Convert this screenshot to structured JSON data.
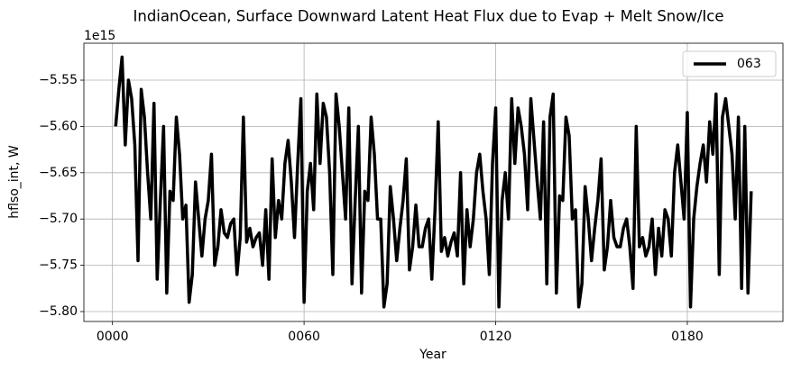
{
  "chart_data": {
    "type": "line",
    "title": "IndianOcean, Surface Downward Latent Heat Flux due to Evap + Melt Snow/Ice",
    "xlabel": "Year",
    "ylabel": "hflso_int, W",
    "offset_label": "1e15",
    "grid": true,
    "legend": "upper right",
    "xlim": [
      -8.95,
      209.95
    ],
    "ylim": [
      -5.8107,
      -5.5101
    ],
    "xticks": [
      {
        "value": 0,
        "label": "0000"
      },
      {
        "value": 60,
        "label": "0060"
      },
      {
        "value": 120,
        "label": "0120"
      },
      {
        "value": 180,
        "label": "0180"
      }
    ],
    "yticks": [
      {
        "value": -5.8,
        "label": "−5.80"
      },
      {
        "value": -5.75,
        "label": "−5.75"
      },
      {
        "value": -5.7,
        "label": "−5.70"
      },
      {
        "value": -5.65,
        "label": "−5.65"
      },
      {
        "value": -5.6,
        "label": "−5.60"
      },
      {
        "value": -5.55,
        "label": "−5.55"
      }
    ],
    "x": [
      1,
      2,
      3,
      4,
      5,
      6,
      7,
      8,
      9,
      10,
      11,
      12,
      13,
      14,
      15,
      16,
      17,
      18,
      19,
      20,
      21,
      22,
      23,
      24,
      25,
      26,
      27,
      28,
      29,
      30,
      31,
      32,
      33,
      34,
      35,
      36,
      37,
      38,
      39,
      40,
      41,
      42,
      43,
      44,
      45,
      46,
      47,
      48,
      49,
      50,
      51,
      52,
      53,
      54,
      55,
      56,
      57,
      58,
      59,
      60,
      61,
      62,
      63,
      64,
      65,
      66,
      67,
      68,
      69,
      70,
      71,
      72,
      73,
      74,
      75,
      76,
      77,
      78,
      79,
      80,
      81,
      82,
      83,
      84,
      85,
      86,
      87,
      88,
      89,
      90,
      91,
      92,
      93,
      94,
      95,
      96,
      97,
      98,
      99,
      100,
      101,
      102,
      103,
      104,
      105,
      106,
      107,
      108,
      109,
      110,
      111,
      112,
      113,
      114,
      115,
      116,
      117,
      118,
      119,
      120,
      121,
      122,
      123,
      124,
      125,
      126,
      127,
      128,
      129,
      130,
      131,
      132,
      133,
      134,
      135,
      136,
      137,
      138,
      139,
      140,
      141,
      142,
      143,
      144,
      145,
      146,
      147,
      148,
      149,
      150,
      151,
      152,
      153,
      154,
      155,
      156,
      157,
      158,
      159,
      160,
      161,
      162,
      163,
      164,
      165,
      166,
      167,
      168,
      169,
      170,
      171,
      172,
      173,
      174,
      175,
      176,
      177,
      178,
      179,
      180,
      181,
      182,
      183,
      184,
      185,
      186,
      187,
      188,
      189,
      190,
      191,
      192,
      193,
      194,
      195,
      196,
      197,
      198,
      199,
      200
    ],
    "series": [
      {
        "name": "063",
        "color": "#000000",
        "values": [
          -5.6,
          -5.56,
          -5.525,
          -5.62,
          -5.55,
          -5.57,
          -5.62,
          -5.745,
          -5.56,
          -5.59,
          -5.65,
          -5.7,
          -5.575,
          -5.765,
          -5.68,
          -5.6,
          -5.78,
          -5.67,
          -5.68,
          -5.59,
          -5.63,
          -5.7,
          -5.685,
          -5.79,
          -5.76,
          -5.66,
          -5.7,
          -5.74,
          -5.7,
          -5.68,
          -5.63,
          -5.75,
          -5.73,
          -5.69,
          -5.715,
          -5.72,
          -5.705,
          -5.7,
          -5.76,
          -5.72,
          -5.59,
          -5.725,
          -5.71,
          -5.73,
          -5.72,
          -5.715,
          -5.75,
          -5.69,
          -5.765,
          -5.635,
          -5.72,
          -5.68,
          -5.7,
          -5.64,
          -5.615,
          -5.66,
          -5.72,
          -5.64,
          -5.57,
          -5.79,
          -5.67,
          -5.64,
          -5.69,
          -5.565,
          -5.64,
          -5.575,
          -5.59,
          -5.65,
          -5.76,
          -5.565,
          -5.6,
          -5.65,
          -5.7,
          -5.58,
          -5.77,
          -5.68,
          -5.6,
          -5.78,
          -5.67,
          -5.68,
          -5.59,
          -5.63,
          -5.7,
          -5.7,
          -5.795,
          -5.77,
          -5.665,
          -5.7,
          -5.745,
          -5.71,
          -5.68,
          -5.635,
          -5.755,
          -5.73,
          -5.685,
          -5.73,
          -5.73,
          -5.71,
          -5.7,
          -5.765,
          -5.69,
          -5.595,
          -5.735,
          -5.72,
          -5.74,
          -5.725,
          -5.715,
          -5.74,
          -5.65,
          -5.77,
          -5.69,
          -5.73,
          -5.7,
          -5.65,
          -5.63,
          -5.67,
          -5.7,
          -5.76,
          -5.64,
          -5.58,
          -5.795,
          -5.68,
          -5.65,
          -5.7,
          -5.57,
          -5.64,
          -5.58,
          -5.6,
          -5.63,
          -5.69,
          -5.57,
          -5.615,
          -5.66,
          -5.7,
          -5.595,
          -5.77,
          -5.59,
          -5.565,
          -5.78,
          -5.675,
          -5.68,
          -5.59,
          -5.61,
          -5.7,
          -5.69,
          -5.795,
          -5.77,
          -5.665,
          -5.7,
          -5.745,
          -5.71,
          -5.68,
          -5.635,
          -5.755,
          -5.73,
          -5.68,
          -5.72,
          -5.73,
          -5.73,
          -5.71,
          -5.7,
          -5.73,
          -5.775,
          -5.6,
          -5.73,
          -5.72,
          -5.74,
          -5.73,
          -5.7,
          -5.76,
          -5.71,
          -5.74,
          -5.69,
          -5.7,
          -5.74,
          -5.65,
          -5.62,
          -5.66,
          -5.7,
          -5.585,
          -5.795,
          -5.7,
          -5.665,
          -5.64,
          -5.62,
          -5.66,
          -5.595,
          -5.63,
          -5.565,
          -5.76,
          -5.59,
          -5.57,
          -5.6,
          -5.63,
          -5.7,
          -5.59,
          -5.775,
          -5.6,
          -5.78,
          -5.67
        ]
      }
    ]
  }
}
